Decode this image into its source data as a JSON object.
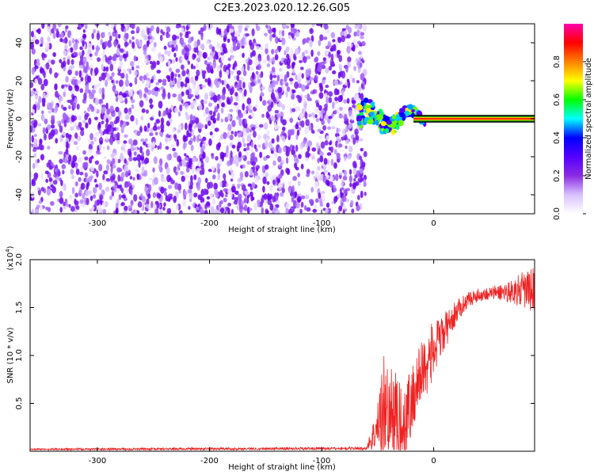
{
  "title": "C2E3.2023.020.12.26.G05",
  "chart_data": [
    {
      "type": "heatmap",
      "xlabel": "Height of straight line (km)",
      "ylabel": "Frequency (Hz)",
      "xlim": [
        -360,
        90
      ],
      "ylim": [
        -50,
        50
      ],
      "xticks": [
        -300,
        -200,
        -100,
        0
      ],
      "yticks": [
        -40,
        -20,
        0,
        20,
        40
      ],
      "colorbar": {
        "label": "Normalized spectral amplitude",
        "range": [
          0,
          1
        ],
        "ticks": [
          "0.0",
          "0.2",
          "0.4",
          "0.6",
          "0.8"
        ],
        "colors": [
          "#ffffff",
          "#d9c2ff",
          "#8a2be2",
          "#5500ff",
          "#0000ff",
          "#00ffff",
          "#00ff00",
          "#ffff00",
          "#ff8000",
          "#ff0000",
          "#ff00aa"
        ]
      },
      "features": {
        "noise_region_x": [
          -360,
          -65
        ],
        "signal_onset_x": -65,
        "signal_band_freq": [
          -1,
          1
        ],
        "band_colors": [
          "#00a000",
          "#ffcc00",
          "#ff2a00"
        ]
      },
      "grid": false
    },
    {
      "type": "line",
      "xlabel": "Height of straight line (km)",
      "ylabel": "SNR (10 * v/v)",
      "y_scale_label": "(x10",
      "y_scale_exponent": "4",
      "y_scale_close": ")",
      "xlim": [
        -360,
        90
      ],
      "ylim": [
        0,
        20000
      ],
      "xticks": [
        -300,
        -200,
        -100,
        0
      ],
      "yticks": [
        {
          "value": 5000,
          "label": "0.5"
        },
        {
          "value": 10000,
          "label": "1.0"
        },
        {
          "value": 15000,
          "label": "1.5"
        },
        {
          "value": 20000,
          "label": "2.0"
        }
      ],
      "color": "#ee2222",
      "envelope": {
        "x": [
          -360,
          -60,
          -50,
          -45,
          -40,
          -35,
          -30,
          -25,
          -20,
          -15,
          -10,
          -5,
          0,
          10,
          20,
          30,
          40,
          50,
          60,
          70,
          80,
          90
        ],
        "y_mean": [
          200,
          300,
          2500,
          5000,
          3500,
          4000,
          3000,
          3500,
          5000,
          7000,
          8500,
          9500,
          10500,
          12500,
          14500,
          15800,
          16300,
          16500,
          16600,
          16700,
          16800,
          16800
        ],
        "y_spread": [
          100,
          150,
          2500,
          6000,
          5000,
          5000,
          4000,
          4500,
          4000,
          3500,
          3500,
          3500,
          3000,
          2000,
          1200,
          800,
          700,
          700,
          900,
          1200,
          2000,
          2500
        ]
      },
      "grid": false
    }
  ]
}
